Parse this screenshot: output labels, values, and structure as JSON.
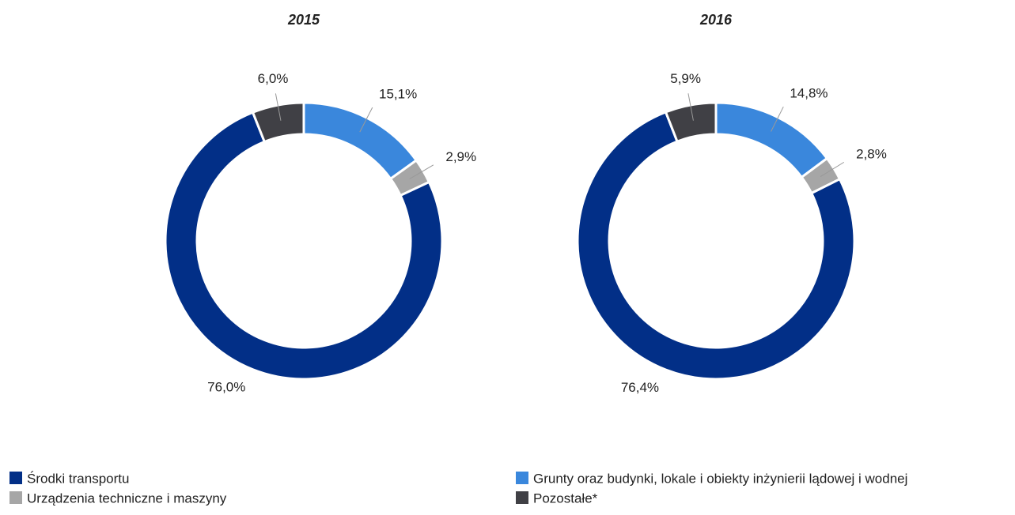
{
  "chart_data": [
    {
      "type": "donut",
      "title": "2015",
      "categories": [
        "Grunty oraz budynki, lokale i obiekty inżynierii lądowej i wodnej",
        "Urządzenia techniczne i maszyny",
        "Środki transportu",
        "Pozostałe*"
      ],
      "values": [
        15.1,
        2.9,
        76.0,
        6.0
      ],
      "value_labels": [
        "15,1%",
        "2,9%",
        "76,0%",
        "6,0%"
      ],
      "colors": [
        "#3a87dc",
        "#a6a6a6",
        "#022f87",
        "#404045"
      ]
    },
    {
      "type": "donut",
      "title": "2016",
      "categories": [
        "Grunty oraz budynki, lokale i obiekty inżynierii lądowej i wodnej",
        "Urządzenia techniczne i maszyny",
        "Środki transportu",
        "Pozostałe*"
      ],
      "values": [
        14.8,
        2.8,
        76.4,
        5.9
      ],
      "value_labels": [
        "14,8%",
        "2,8%",
        "76,4%",
        "5,9%"
      ],
      "colors": [
        "#3a87dc",
        "#a6a6a6",
        "#022f87",
        "#404045"
      ]
    }
  ]
}
